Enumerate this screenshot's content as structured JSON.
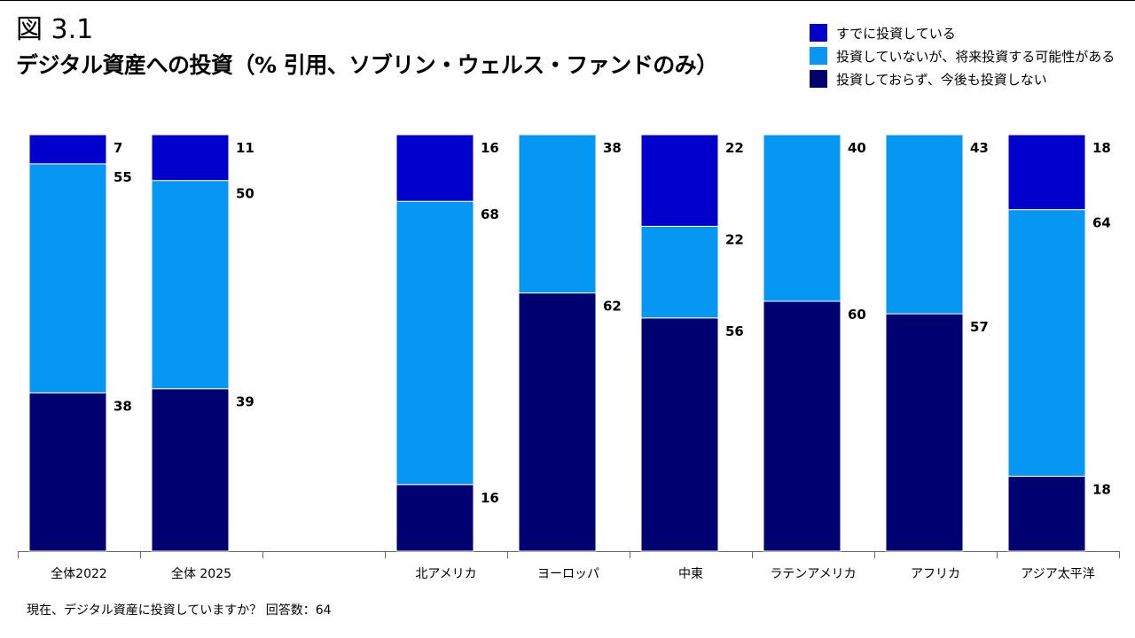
{
  "page": {
    "figure_label": "図 3.1",
    "question": "現在、デジタル資産に投資していますか？  回答数：64"
  },
  "chart_data": {
    "type": "bar",
    "stacked": true,
    "title": "デジタル資産への投資（% 引用、ソブリン・ウェルス・ファンドのみ）",
    "xlabel": "",
    "ylabel": "",
    "ylim": [
      0,
      100
    ],
    "grid": false,
    "legend_position": "top-right",
    "categories": [
      "全体2022",
      "全体 2025",
      "",
      "北アメリカ",
      "ヨーロッパ",
      "中東",
      "ラテンアメリカ",
      "アフリカ",
      "アジア太平洋"
    ],
    "series": [
      {
        "name": "すでに投資している",
        "color": "#0000cc",
        "values": [
          7,
          11,
          null,
          16,
          null,
          22,
          null,
          null,
          18
        ]
      },
      {
        "name": "投資していないが、将来投資する可能性がある",
        "color": "#0597f2",
        "values": [
          55,
          50,
          null,
          68,
          38,
          22,
          40,
          43,
          64
        ]
      },
      {
        "name": "投資しておらず、今後も投資しない",
        "color": "#000070",
        "values": [
          38,
          39,
          null,
          16,
          62,
          56,
          60,
          57,
          18
        ]
      }
    ]
  }
}
